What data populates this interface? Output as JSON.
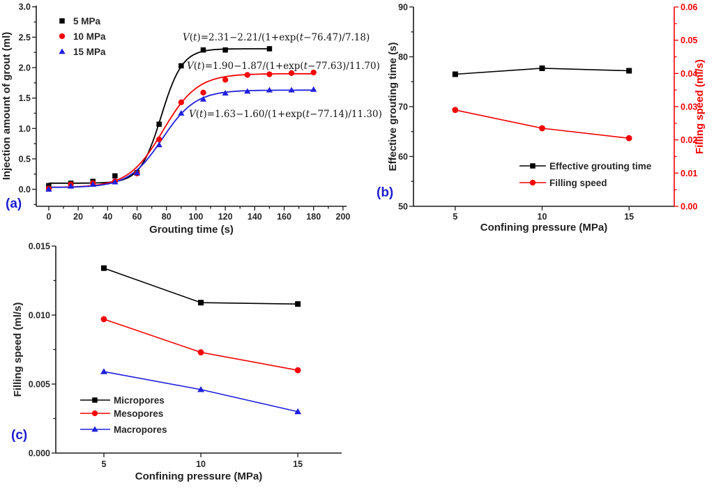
{
  "figure": {
    "background": "#ffffff",
    "tag_color": "#1c1cd0",
    "axis_color": "#1a1a1a",
    "black": "#000000",
    "red": "#f40000",
    "blue": "#2020dd"
  },
  "chart_data": [
    {
      "id": "a",
      "type": "scatter",
      "panel_tag": "(a)",
      "xlabel": "Grouting time (s)",
      "ylabel": "Injection amount of grout (ml)",
      "xlim": [
        -8.5,
        202.4
      ],
      "ylim": [
        -0.28,
        3.02
      ],
      "xtick_labels": [
        "0",
        "20",
        "40",
        "60",
        "80",
        "100",
        "120",
        "140",
        "160",
        "180",
        "200"
      ],
      "ytick_labels": [
        "0.0",
        "0.5",
        "1.0",
        "1.5",
        "2.0",
        "2.5",
        "3.0"
      ],
      "x_minor_step": 10,
      "y_minor_step": 0.25,
      "grid": false,
      "legend_position": "top-left",
      "series": [
        {
          "name": "5 MPa",
          "color": "#000000",
          "marker": "square",
          "points_x": [
            0,
            15,
            30,
            45,
            60,
            75,
            90,
            105,
            120,
            150
          ],
          "points_y": [
            0.06,
            0.1,
            0.13,
            0.22,
            0.27,
            1.07,
            2.03,
            2.29,
            2.29,
            2.31
          ],
          "fit": {
            "v_inf": 2.31,
            "amp": 2.21,
            "t0": 76.47,
            "tau": 7.18,
            "t_start": 0,
            "t_end": 150
          }
        },
        {
          "name": "10 MPa",
          "color": "#f40000",
          "marker": "circle",
          "points_x": [
            0,
            15,
            30,
            45,
            60,
            75,
            90,
            105,
            120,
            135,
            150,
            165,
            180
          ],
          "points_y": [
            0.01,
            0.08,
            0.1,
            0.13,
            0.26,
            0.82,
            1.43,
            1.59,
            1.8,
            1.88,
            1.89,
            1.91,
            1.92
          ],
          "fit": {
            "v_inf": 1.9,
            "amp": 1.87,
            "t0": 77.63,
            "tau": 11.7,
            "t_start": 0,
            "t_end": 180
          }
        },
        {
          "name": "15 MPa",
          "color": "#2020dd",
          "marker": "triangle",
          "points_x": [
            0,
            15,
            30,
            45,
            60,
            75,
            90,
            105,
            120,
            135,
            150,
            165,
            180
          ],
          "points_y": [
            0.0,
            0.05,
            0.08,
            0.12,
            0.27,
            0.73,
            1.25,
            1.48,
            1.58,
            1.61,
            1.63,
            1.63,
            1.64
          ],
          "fit": {
            "v_inf": 1.63,
            "amp": 1.6,
            "t0": 77.14,
            "tau": 11.3,
            "t_start": 0,
            "t_end": 180
          }
        }
      ],
      "equations": [
        "V(t)=2.31−2.21/(1+exp(t−76.47)/7.18)",
        "V(t)=1.90−1.87/(1+exp(t−77.63)/11.70)",
        "V(t)=1.63−1.60/(1+exp(t−77.14)/11.30)"
      ]
    },
    {
      "id": "b",
      "type": "line",
      "panel_tag": "(b)",
      "xlabel": "Confining pressure (MPa)",
      "ylabel_left": "Effective grouting time (s)",
      "ylabel_right": "Filling speed (ml/s)",
      "xlim": [
        2.6,
        17.6
      ],
      "ylim_left": [
        50,
        90
      ],
      "ylim_right": [
        0.0,
        0.06
      ],
      "xtick_labels": [
        "5",
        "10",
        "15"
      ],
      "ytick_labels_left": [
        "50",
        "60",
        "70",
        "80",
        "90"
      ],
      "ytick_labels_right": [
        "0.00",
        "0.01",
        "0.02",
        "0.03",
        "0.04",
        "0.05",
        "0.06"
      ],
      "y_minor_step_left": 5,
      "y_minor_step_right": 0.005,
      "right_axis_color": "#f40000",
      "series": [
        {
          "name": "Effective grouting time",
          "axis": "left",
          "color": "#000000",
          "marker": "square",
          "points_x": [
            5,
            10,
            15
          ],
          "points_y": [
            76.5,
            77.7,
            77.2
          ]
        },
        {
          "name": "Filling speed",
          "axis": "right",
          "color": "#f40000",
          "marker": "circle",
          "points_x": [
            5,
            10,
            15
          ],
          "points_y": [
            0.029,
            0.0235,
            0.0205
          ]
        }
      ]
    },
    {
      "id": "c",
      "type": "line",
      "panel_tag": "(c)",
      "xlabel": "Confining pressure (MPa)",
      "ylabel": "Filling speed (ml/s)",
      "xlim": [
        2.52,
        17.26
      ],
      "ylim": [
        0.0,
        0.015
      ],
      "xtick_labels": [
        "5",
        "10",
        "15"
      ],
      "ytick_labels": [
        "0.000",
        "0.005",
        "0.010",
        "0.015"
      ],
      "y_minor_step": 0.0025,
      "series": [
        {
          "name": "Micropores",
          "color": "#000000",
          "marker": "square",
          "points_x": [
            5,
            10,
            15
          ],
          "points_y": [
            0.0134,
            0.0109,
            0.0108
          ]
        },
        {
          "name": "Mesopores",
          "color": "#f40000",
          "marker": "circle",
          "points_x": [
            5,
            10,
            15
          ],
          "points_y": [
            0.0097,
            0.0073,
            0.006
          ]
        },
        {
          "name": "Macropores",
          "color": "#2020dd",
          "marker": "triangle",
          "points_x": [
            5,
            10,
            15
          ],
          "points_y": [
            0.0059,
            0.0046,
            0.003
          ]
        }
      ]
    }
  ]
}
